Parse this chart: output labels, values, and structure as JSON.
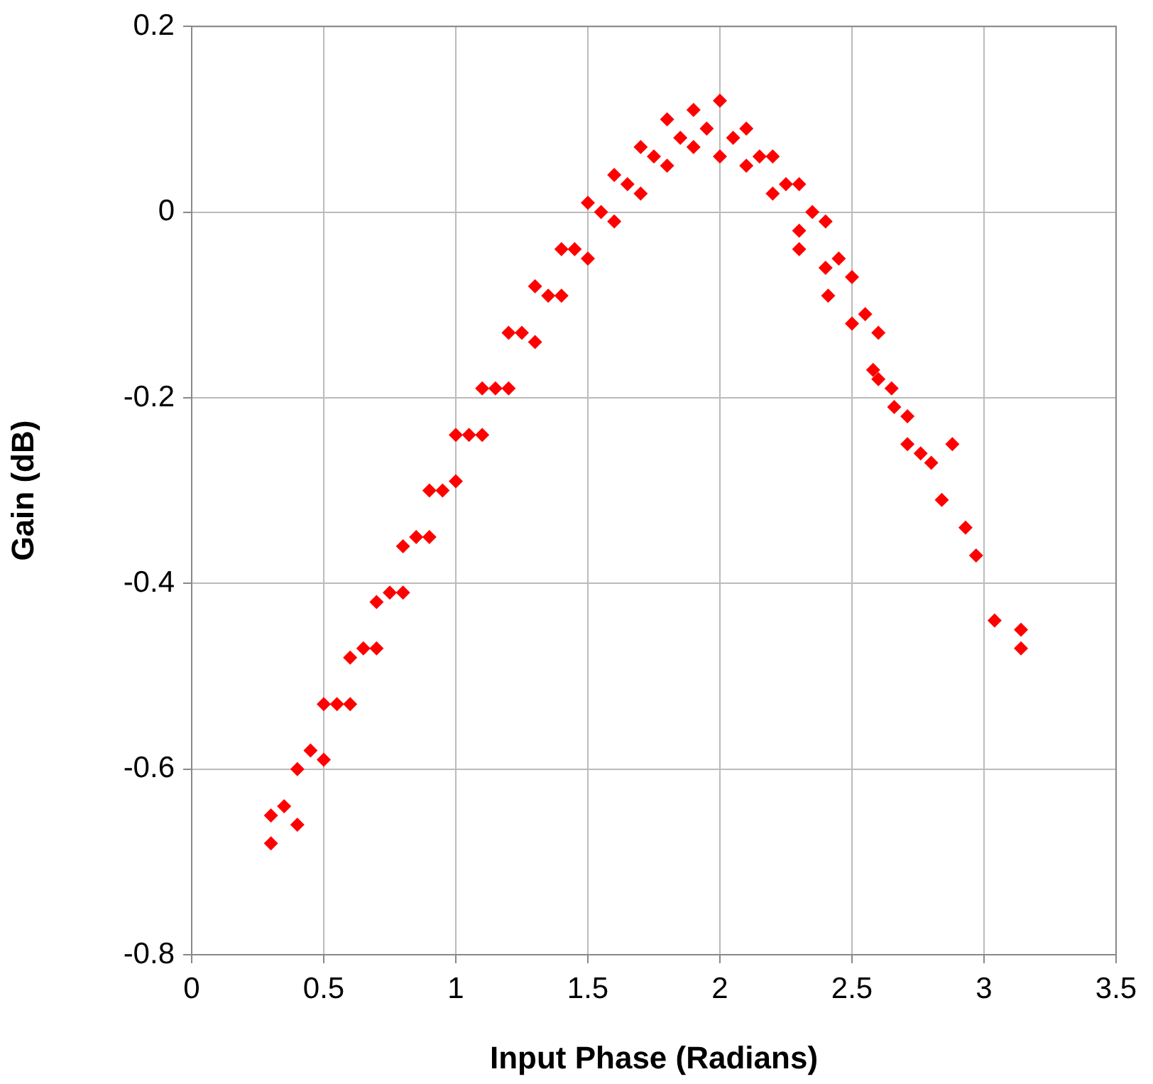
{
  "chart_data": {
    "type": "scatter",
    "xlabel": "Input Phase (Radians)",
    "ylabel": "Gain (dB)",
    "xlim": [
      0,
      3.5
    ],
    "xticks": [
      0,
      0.5,
      1,
      1.5,
      2,
      2.5,
      3,
      3.5
    ],
    "ylim": [
      -0.8,
      0.2
    ],
    "yticks": [
      -0.8,
      -0.6,
      -0.4,
      -0.2,
      0,
      0.2
    ],
    "grid": true,
    "marker": "diamond",
    "series": [
      {
        "color": "#ff0000",
        "x": [
          0.3,
          0.3,
          0.35,
          0.4,
          0.4,
          0.45,
          0.5,
          0.5,
          0.55,
          0.6,
          0.6,
          0.65,
          0.7,
          0.7,
          0.75,
          0.8,
          0.8,
          0.85,
          0.9,
          0.9,
          0.95,
          1.0,
          1.0,
          1.05,
          1.1,
          1.1,
          1.15,
          1.2,
          1.2,
          1.25,
          1.3,
          1.3,
          1.35,
          1.4,
          1.4,
          1.45,
          1.5,
          1.5,
          1.55,
          1.6,
          1.6,
          1.65,
          1.7,
          1.7,
          1.75,
          1.8,
          1.8,
          1.85,
          1.9,
          1.9,
          1.95,
          2.0,
          2.0,
          2.05,
          2.1,
          2.1,
          2.15,
          2.2,
          2.2,
          2.25,
          2.3,
          2.3,
          2.35,
          2.4,
          2.4,
          2.45,
          2.5,
          2.5,
          2.55,
          2.6,
          2.6,
          2.3,
          2.41,
          2.58,
          2.65,
          2.66,
          2.71,
          2.71,
          2.76,
          2.8,
          2.84,
          2.88,
          2.93,
          2.97,
          3.04,
          3.14,
          3.14
        ],
        "values": [
          -0.65,
          -0.68,
          -0.64,
          -0.6,
          -0.66,
          -0.58,
          -0.53,
          -0.59,
          -0.53,
          -0.48,
          -0.53,
          -0.47,
          -0.42,
          -0.47,
          -0.41,
          -0.36,
          -0.41,
          -0.35,
          -0.3,
          -0.35,
          -0.3,
          -0.24,
          -0.29,
          -0.24,
          -0.19,
          -0.24,
          -0.19,
          -0.13,
          -0.19,
          -0.13,
          -0.08,
          -0.14,
          -0.09,
          -0.04,
          -0.09,
          -0.04,
          0.01,
          -0.05,
          0,
          0.04,
          -0.01,
          0.03,
          0.07,
          0.02,
          0.06,
          0.1,
          0.05,
          0.08,
          0.11,
          0.07,
          0.09,
          0.12,
          0.06,
          0.08,
          0.09,
          0.05,
          0.06,
          0.06,
          0.02,
          0.03,
          0.03,
          -0.02,
          0,
          -0.01,
          -0.06,
          -0.05,
          -0.07,
          -0.12,
          -0.11,
          -0.13,
          -0.18,
          -0.04,
          -0.09,
          -0.17,
          -0.19,
          -0.21,
          -0.25,
          -0.22,
          -0.26,
          -0.27,
          -0.31,
          -0.25,
          -0.34,
          -0.37,
          -0.44,
          -0.45,
          -0.47
        ]
      }
    ]
  }
}
